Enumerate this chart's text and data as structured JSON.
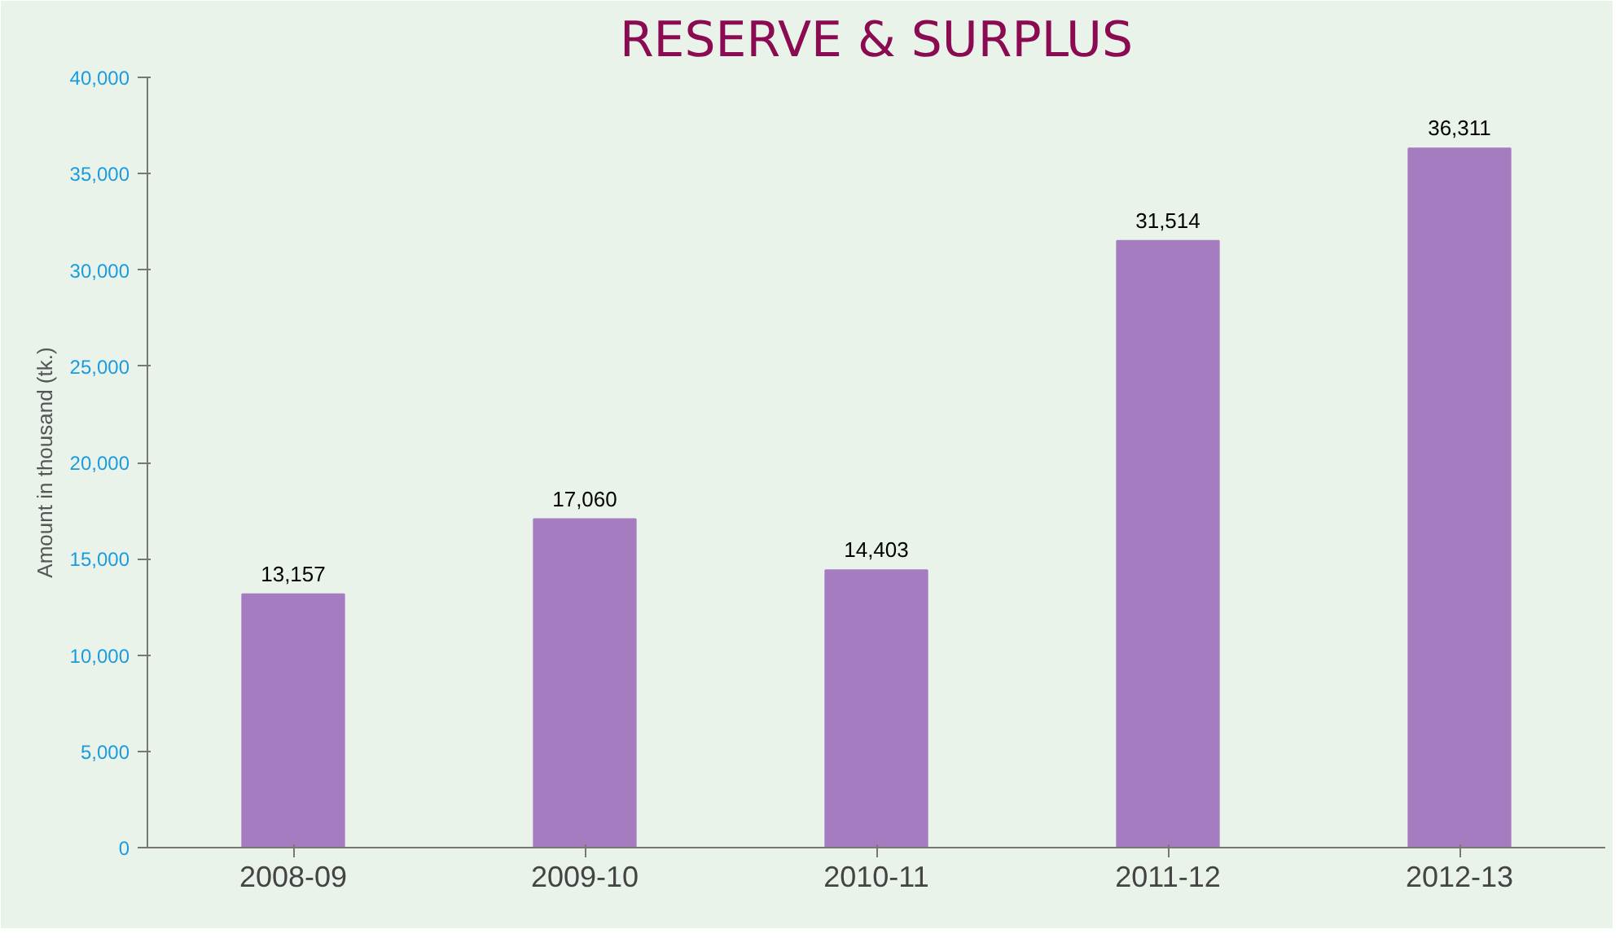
{
  "chart_data": {
    "type": "bar",
    "title": "RESERVE & SURPLUS",
    "ylabel": "Amount in thousand (tk.)",
    "categories": [
      "2008-09",
      "2009-10",
      "2010-11",
      "2011-12",
      "2012-13"
    ],
    "values": [
      13157,
      17060,
      14403,
      31514,
      36311
    ],
    "color": "#a57cc0",
    "ylim": [
      0,
      40000
    ],
    "yticks": [
      0,
      {
        "value": 5000,
        "label": "5,000"
      },
      {
        "value": 10000,
        "label": "10,000"
      },
      {
        "value": 15000,
        "label": "15,000"
      },
      {
        "value": 20000,
        "label": "20,000"
      },
      {
        "value": 25000,
        "label": "25,000"
      },
      {
        "value": 30000,
        "label": "30,000"
      },
      {
        "value": 35000,
        "label": "35,000"
      },
      {
        "value": 40000,
        "label": "40,000"
      }
    ],
    "value_labels": [
      "13,157",
      "17,060",
      "14,403",
      "31,514",
      "36,311"
    ]
  }
}
